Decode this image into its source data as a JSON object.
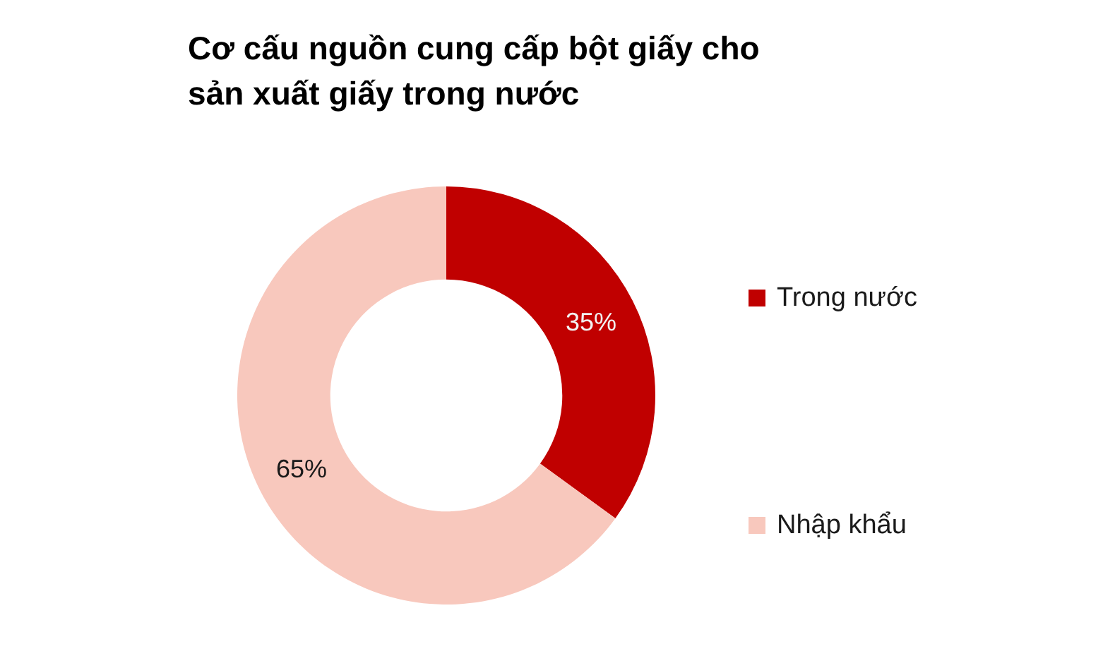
{
  "chart_data": {
    "type": "donut",
    "title": "Cơ cấu nguồn cung cấp bột giấy cho sản xuất giấy trong nước",
    "categories": [
      "Trong nước",
      "Nhập khẩu"
    ],
    "values": [
      35,
      65
    ],
    "colors": [
      "#c00000",
      "#f8c8bd"
    ],
    "value_labels": [
      "35%",
      "65%"
    ],
    "legend": "right"
  }
}
